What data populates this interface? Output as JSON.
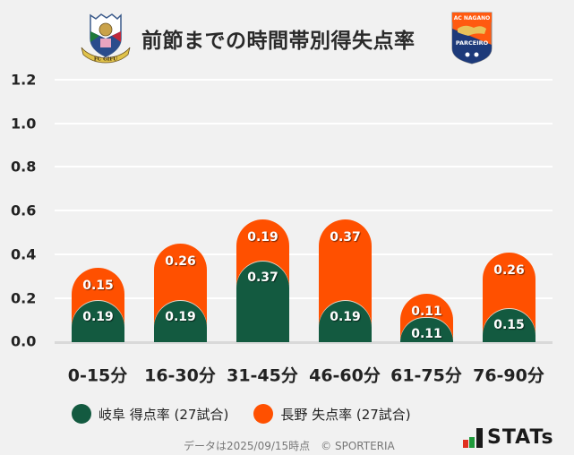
{
  "header": {
    "title": "前節までの時間帯別得失点率",
    "left_team_logo": "fc-gifu-crest",
    "right_team_logo": "ac-nagano-parceiro-crest",
    "right_logo_text_top": "AC NAGANO",
    "right_logo_text_bottom": "PARCEIRO",
    "left_logo_text": "FC GIFU"
  },
  "colors": {
    "home": "#135a40",
    "away": "#ff5000",
    "background": "#f1f1f1",
    "gridline": "#ffffff"
  },
  "chart_data": {
    "type": "bar",
    "stacked": true,
    "title": "前節までの時間帯別得失点率",
    "categories": [
      "0-15分",
      "16-30分",
      "31-45分",
      "46-60分",
      "61-75分",
      "76-90分"
    ],
    "series": [
      {
        "name": "岐阜 得点率 (27試合)",
        "color": "#135a40",
        "values": [
          0.19,
          0.19,
          0.37,
          0.19,
          0.11,
          0.15
        ]
      },
      {
        "name": "長野 失点率 (27試合)",
        "color": "#ff5000",
        "values": [
          0.15,
          0.26,
          0.19,
          0.37,
          0.11,
          0.26
        ]
      }
    ],
    "xlabel": "",
    "ylabel": "",
    "ylim": [
      0,
      1.2
    ],
    "yticks": [
      "0.0",
      "0.2",
      "0.4",
      "0.6",
      "0.8",
      "1.0",
      "1.2"
    ],
    "grid": true,
    "legend_position": "bottom"
  },
  "bars": [
    {
      "home_label": "0.19",
      "away_label": "0.15"
    },
    {
      "home_label": "0.19",
      "away_label": "0.26"
    },
    {
      "home_label": "0.37",
      "away_label": "0.19"
    },
    {
      "home_label": "0.19",
      "away_label": "0.37"
    },
    {
      "home_label": "0.11",
      "away_label": "0.11"
    },
    {
      "home_label": "0.15",
      "away_label": "0.26"
    }
  ],
  "legend": {
    "items": [
      {
        "label": "岐阜 得点率 (27試合)",
        "color": "#135a40"
      },
      {
        "label": "長野 失点率 (27試合)",
        "color": "#ff5000"
      }
    ]
  },
  "footer": {
    "note": "データは2025/09/15時点　© SPORTERIA",
    "brand": "STATs"
  }
}
